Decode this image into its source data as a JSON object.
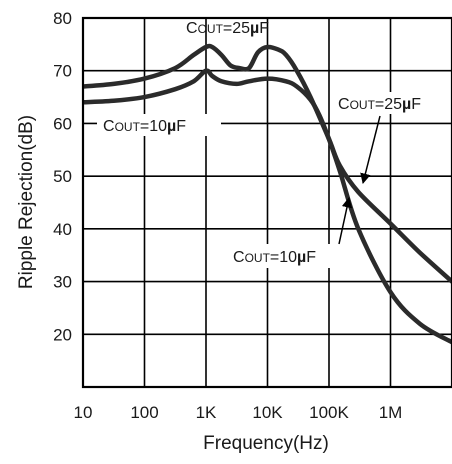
{
  "chart_data": {
    "type": "line",
    "xlabel": "Frequency(Hz)",
    "ylabel": "Ripple Rejection(dB)",
    "x_scale": "log",
    "xlim": [
      10,
      10000000
    ],
    "ylim": [
      10,
      80
    ],
    "grid": true,
    "x_ticks": [
      10,
      100,
      1000,
      10000,
      100000,
      1000000
    ],
    "x_tick_labels": [
      "10",
      "100",
      "1K",
      "10K",
      "100K",
      "1M"
    ],
    "y_ticks": [
      20,
      30,
      40,
      50,
      60,
      70,
      80
    ],
    "y_tick_labels": [
      "20",
      "30",
      "40",
      "50",
      "60",
      "70",
      "80"
    ],
    "series": [
      {
        "name": "COUT=25µF",
        "x": [
          10,
          31.6,
          100,
          316,
          630,
          1000,
          1260,
          1780,
          2500,
          3500,
          5000,
          7000,
          10000,
          15000,
          20000,
          30000,
          50000,
          100000,
          150000,
          300000,
          1000000,
          3000000,
          10000000
        ],
        "y": [
          67,
          67.5,
          68.5,
          70.5,
          73,
          74.5,
          74.5,
          73,
          71,
          70.5,
          70.5,
          73.5,
          74.5,
          74,
          73,
          70,
          65,
          57,
          52,
          47,
          41,
          35.5,
          30
        ]
      },
      {
        "name": "COUT=10µF",
        "x": [
          10,
          31.6,
          100,
          316,
          630,
          1000,
          1260,
          1780,
          3160,
          5000,
          10000,
          20000,
          30000,
          50000,
          70000,
          100000,
          150000,
          300000,
          1000000,
          3000000,
          10000000
        ],
        "y": [
          64,
          64.3,
          65,
          66.5,
          68,
          70,
          69,
          68,
          67.5,
          68,
          68.5,
          68,
          67,
          64.5,
          61.5,
          57,
          51,
          40,
          28,
          22,
          18.5
        ]
      }
    ],
    "annotations": [
      {
        "label": "COUT=25µF",
        "text": "C",
        "sub": "OUT",
        "mid": "=25",
        "unit": "µ",
        "tail": "F"
      },
      {
        "label": "COUT=10µF",
        "text": "C",
        "sub": "OUT",
        "mid": "=10",
        "unit": "µ",
        "tail": "F"
      },
      {
        "label": "COUT=25µF",
        "text": "C",
        "sub": "OUT",
        "mid": "=25",
        "unit": "µ",
        "tail": "F"
      },
      {
        "label": "COUT=10µF",
        "text": "C",
        "sub": "OUT",
        "mid": "=10",
        "unit": "µ",
        "tail": "F"
      }
    ]
  }
}
